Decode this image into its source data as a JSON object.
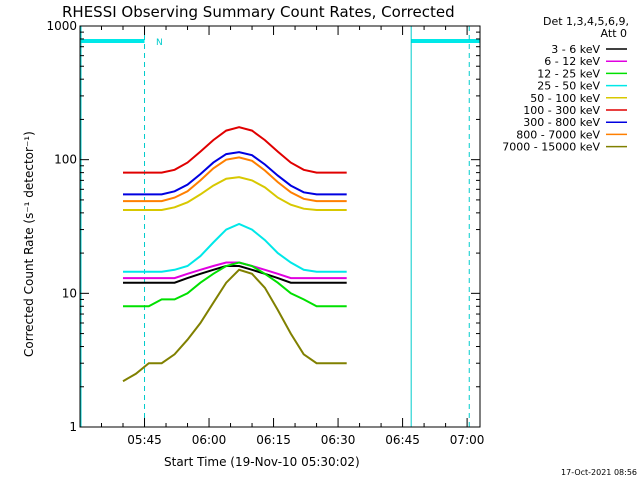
{
  "chart_data": {
    "type": "line",
    "title": "RHESSI Observing Summary Count Rates, Corrected",
    "xlabel": "Start Time (19-Nov-10 05:30:02)",
    "ylabel": "Corrected Count Rate (s⁻¹ detector⁻¹)",
    "yscale": "log",
    "ylim": [
      1,
      1000
    ],
    "xlim_minutes_after_0530": [
      0,
      93
    ],
    "x_tick_labels": [
      "05:45",
      "06:00",
      "06:15",
      "06:30",
      "06:45",
      "07:00"
    ],
    "x_tick_minutes": [
      15,
      30,
      45,
      60,
      75,
      90
    ],
    "y_tick_labels": [
      "1",
      "10",
      "100",
      "1000"
    ],
    "y_tick_values": [
      1,
      10,
      100,
      1000
    ],
    "legend_header": [
      "Det 1,3,4,5,6,9,",
      "Att 0"
    ],
    "legend_position": "right",
    "annotation_N": "N",
    "timestamp": "17-Oct-2021 08:56",
    "cyan_bar_spans_min": [
      [
        0,
        15
      ],
      [
        77,
        93
      ]
    ],
    "dashed_markers_min": [
      15,
      90.5
    ],
    "solid_markers_min": [
      77
    ],
    "series": [
      {
        "name": "3 - 6 keV",
        "color": "#000000",
        "values": [
          12,
          12,
          12,
          12,
          12,
          13,
          14,
          15,
          16,
          16,
          15,
          14,
          13,
          12,
          12,
          12,
          12,
          12
        ]
      },
      {
        "name": "6 - 12 keV",
        "color": "#e000e0",
        "values": [
          13,
          13,
          13,
          13,
          13,
          14,
          15,
          16,
          17,
          17,
          16,
          15,
          14,
          13,
          13,
          13,
          13,
          13
        ]
      },
      {
        "name": "12 - 25 keV",
        "color": "#00e000",
        "values": [
          8,
          8,
          8,
          9,
          9,
          10,
          12,
          14,
          16,
          17,
          16,
          14,
          12,
          10,
          9,
          8,
          8,
          8
        ]
      },
      {
        "name": "25 - 50 keV",
        "color": "#00e8e8",
        "values": [
          14.5,
          14.5,
          14.5,
          14.5,
          15,
          16,
          19,
          24,
          30,
          33,
          30,
          25,
          20,
          17,
          15,
          14.5,
          14.5,
          14.5
        ]
      },
      {
        "name": "50 - 100 keV",
        "color": "#d8c800",
        "values": [
          42,
          42,
          42,
          42,
          44,
          48,
          55,
          64,
          72,
          74,
          70,
          62,
          52,
          46,
          43,
          42,
          42,
          42
        ]
      },
      {
        "name": "100 - 300 keV",
        "color": "#e00000",
        "values": [
          80,
          80,
          80,
          80,
          84,
          95,
          115,
          140,
          165,
          175,
          165,
          140,
          115,
          95,
          84,
          80,
          80,
          80
        ]
      },
      {
        "name": "300 - 800 keV",
        "color": "#0000e0",
        "values": [
          55,
          55,
          55,
          55,
          58,
          65,
          78,
          95,
          110,
          114,
          108,
          92,
          76,
          64,
          57,
          55,
          55,
          55
        ]
      },
      {
        "name": "800 - 7000 keV",
        "color": "#ff7f00",
        "values": [
          49,
          49,
          49,
          49,
          52,
          58,
          70,
          86,
          100,
          104,
          98,
          83,
          68,
          57,
          51,
          49,
          49,
          49
        ]
      },
      {
        "name": "7000 - 15000 keV",
        "color": "#808000",
        "values": [
          2.2,
          2.5,
          3,
          3,
          3.5,
          4.5,
          6,
          8.5,
          12,
          15,
          14,
          11,
          7.5,
          5,
          3.5,
          3,
          3,
          3
        ]
      }
    ],
    "x_minutes": [
      10,
      13,
      16,
      19,
      22,
      25,
      28,
      31,
      34,
      37,
      40,
      43,
      46,
      49,
      52,
      55,
      58,
      62
    ]
  }
}
